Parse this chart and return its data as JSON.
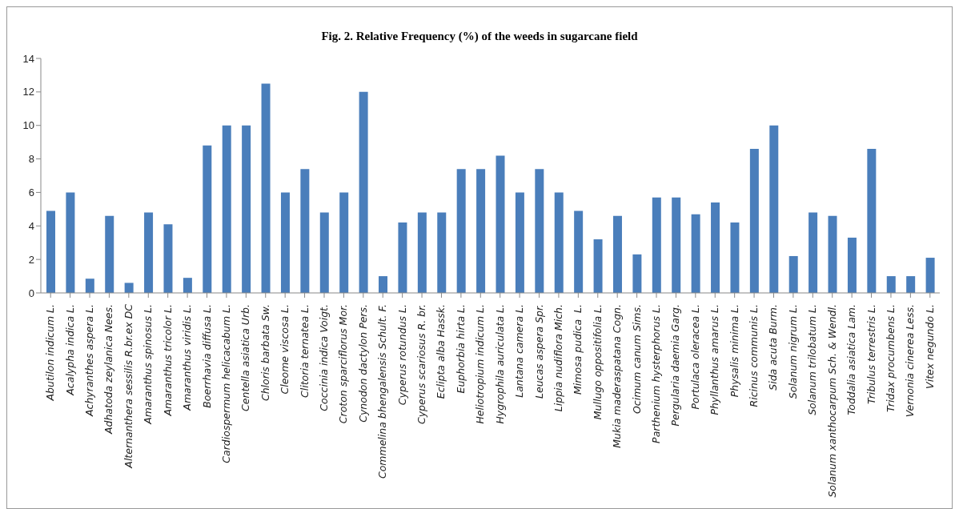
{
  "chart_data": {
    "type": "bar",
    "title": "Fig. 2. Relative Frequency (%) of the weeds in sugarcane field",
    "categories": [
      "Abutilon indicum L.",
      "Acalypha indica L.",
      "Achyranthes aspera L.",
      "Adhatoda zeylanica Nees.",
      "Alternanthera sessilis R.br.ex DC",
      "Amaranthus spinosus L.",
      "Amaranthus tricolor L.",
      "Amaranthus viridis L.",
      "Boerrhavia diffusa L.",
      "Cardiospermum helicacabum L.",
      "Centella asiatica Urb.",
      "Chloris barbata Sw.",
      "Cleome viscosa L.",
      "Clitoria ternatea L.",
      "Coccinia indica Voigt.",
      "Croton sparciflorus Mor.",
      "Cynodon dactylon Pers.",
      "Commelina bhengalensis Schult. F.",
      "Cyperus rotundus L.",
      "Cyperus scariosus R. br.",
      "Eclipta alba Hassk.",
      "Euphorbia hirta L.",
      "Heliotropium indicum L.",
      "Hygrophila auriculata L.",
      "Lantana camera L.",
      "Leucas aspera Spr.",
      "Lippia nudiflora Mich.",
      "Mimosa pudica  L.",
      "Mullugo oppositifolia L.",
      "Mukia maderaspatana Cogn.",
      "Ocimum canum Sims.",
      "Parthenium hysterphorus L.",
      "Pergularia daemia Garg.",
      "Portulaca oleracea L.",
      "Phyllanthus amarus L.",
      "Physalis minima L.",
      "Ricinus communis L.",
      "Sida acuta Burm.",
      "Solanum nigrum L.",
      "Solanum trilobatum L.",
      "Solanum xanthocarpum Sch. & Wendl.",
      "Toddalia asiatica Lam.",
      "Tribulus terrestris L.",
      "Tridax procumbens L.",
      "Vernonia cinerea Less.",
      "Vitex negundo L."
    ],
    "values": [
      4.9,
      6,
      0.85,
      4.6,
      0.6,
      4.8,
      4.1,
      0.9,
      8.8,
      10,
      10,
      12.5,
      6,
      7.4,
      4.8,
      6,
      12,
      1,
      4.2,
      4.8,
      4.8,
      7.4,
      7.4,
      8.2,
      6,
      7.4,
      6,
      4.9,
      3.2,
      4.6,
      2.3,
      5.7,
      5.7,
      4.7,
      5.4,
      4.2,
      8.6,
      10,
      2.2,
      4.8,
      4.6,
      3.3,
      8.6,
      1,
      1,
      2.1
    ],
    "color": "#4a7ebb",
    "ylim": [
      0,
      14
    ],
    "yticks": [
      0,
      2,
      4,
      6,
      8,
      10,
      12,
      14
    ],
    "grid": false,
    "legend": false
  }
}
